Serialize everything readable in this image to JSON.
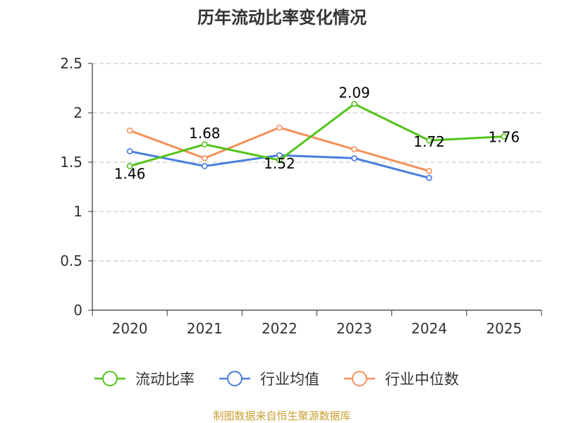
{
  "chart_data": {
    "type": "line",
    "title": "历年流动比率变化情况",
    "categories": [
      "2020",
      "2021",
      "2022",
      "2023",
      "2024",
      "2025"
    ],
    "ylim": [
      0,
      2.5
    ],
    "yticks": [
      "0",
      "0.5",
      "1",
      "1.5",
      "2",
      "2.5"
    ],
    "grid": true,
    "legend_position": "bottom",
    "series": [
      {
        "name": "流动比率",
        "color": "#52c41a",
        "values": [
          1.46,
          1.68,
          1.52,
          2.09,
          1.72,
          1.76
        ],
        "labels": [
          "1.46",
          "1.68",
          "1.52",
          "2.09",
          "1.72",
          "1.76"
        ]
      },
      {
        "name": "行业均值",
        "color": "#4a7fdc",
        "values": [
          1.61,
          1.46,
          1.57,
          1.54,
          1.34,
          null
        ]
      },
      {
        "name": "行业中位数",
        "color": "#f5905a",
        "values": [
          1.82,
          1.54,
          1.85,
          1.63,
          1.41,
          null
        ]
      }
    ]
  },
  "source_text": "制图数据来自恒生聚源数据库",
  "source_color": "#c9a033"
}
